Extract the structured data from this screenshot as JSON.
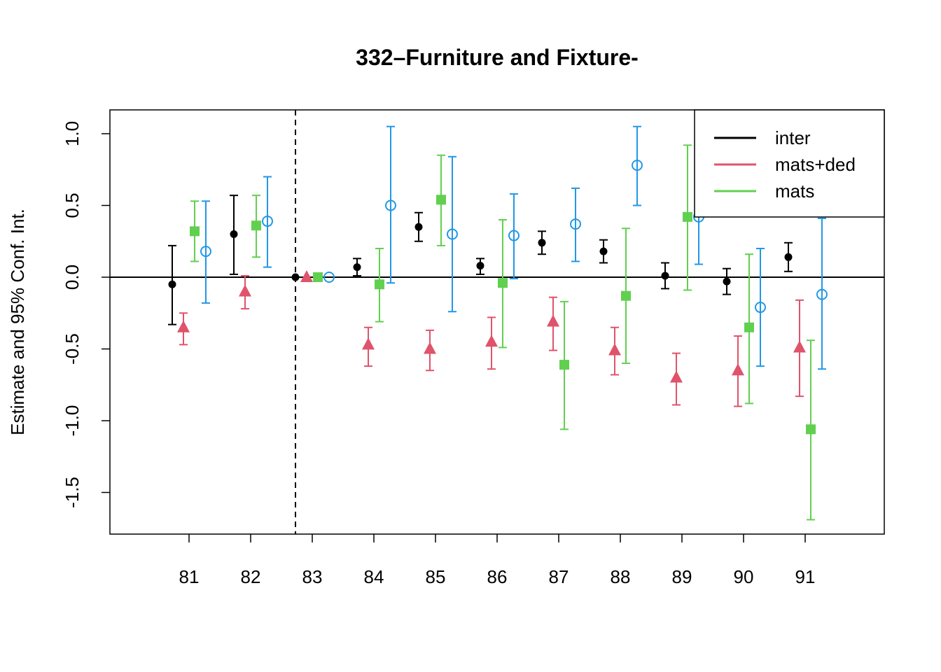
{
  "chart_data": {
    "type": "scatter",
    "title": "332–Furniture and Fixture-",
    "ylabel": "Estimate and 95% Conf. Int.",
    "xlabel": "",
    "categories": [
      "81",
      "82",
      "83",
      "84",
      "85",
      "86",
      "87",
      "88",
      "89",
      "90",
      "91"
    ],
    "yticks": [
      "-1.5",
      "-1.0",
      "-0.5",
      "0.0",
      "0.5",
      "1.0"
    ],
    "ylim": [
      -1.8,
      1.17
    ],
    "reference_category": "83",
    "hline": 0,
    "legend": {
      "placement": "top-right",
      "entries": [
        "inter",
        "mats+ded",
        "mats"
      ]
    },
    "series": [
      {
        "name": "inter",
        "color": "#000000",
        "marker": "filled-circle",
        "estimate": [
          -0.05,
          0.3,
          0.0,
          0.07,
          0.35,
          0.08,
          0.24,
          0.18,
          0.01,
          -0.03,
          0.14
        ],
        "lower": [
          -0.33,
          0.02,
          0.0,
          0.01,
          0.25,
          0.02,
          0.16,
          0.1,
          -0.08,
          -0.12,
          0.04
        ],
        "upper": [
          0.22,
          0.57,
          0.0,
          0.13,
          0.45,
          0.13,
          0.32,
          0.26,
          0.1,
          0.06,
          0.24
        ]
      },
      {
        "name": "mats+ded",
        "color": "#DF536B",
        "marker": "filled-triangle",
        "estimate": [
          -0.35,
          -0.1,
          0.0,
          -0.47,
          -0.5,
          -0.45,
          -0.31,
          -0.51,
          -0.7,
          -0.65,
          -0.49
        ],
        "lower": [
          -0.47,
          -0.22,
          0.0,
          -0.62,
          -0.65,
          -0.64,
          -0.51,
          -0.68,
          -0.89,
          -0.9,
          -0.83
        ],
        "upper": [
          -0.25,
          0.01,
          0.0,
          -0.35,
          -0.37,
          -0.28,
          -0.14,
          -0.35,
          -0.53,
          -0.41,
          -0.16
        ]
      },
      {
        "name": "mats",
        "color": "#61D04F",
        "marker": "filled-square",
        "estimate": [
          0.32,
          0.36,
          0.0,
          -0.05,
          0.54,
          -0.04,
          -0.61,
          -0.13,
          0.42,
          -0.35,
          -1.06
        ],
        "lower": [
          0.11,
          0.14,
          0.0,
          -0.31,
          0.22,
          -0.49,
          -1.06,
          -0.6,
          -0.09,
          -0.88,
          -1.69
        ],
        "upper": [
          0.53,
          0.57,
          0.0,
          0.2,
          0.85,
          0.4,
          -0.17,
          0.34,
          0.92,
          0.16,
          -0.44
        ]
      },
      {
        "name": "",
        "color": "#2297E6",
        "marker": "open-circle",
        "estimate": [
          0.18,
          0.39,
          0.0,
          0.5,
          0.3,
          0.29,
          0.37,
          0.78,
          0.42,
          -0.21,
          -0.12
        ],
        "lower": [
          -0.18,
          0.07,
          0.0,
          -0.04,
          -0.24,
          -0.01,
          0.11,
          0.5,
          0.09,
          -0.62,
          -0.64
        ],
        "upper": [
          0.53,
          0.7,
          0.0,
          1.05,
          0.84,
          0.58,
          0.62,
          1.05,
          0.75,
          0.2,
          0.41
        ]
      }
    ]
  }
}
